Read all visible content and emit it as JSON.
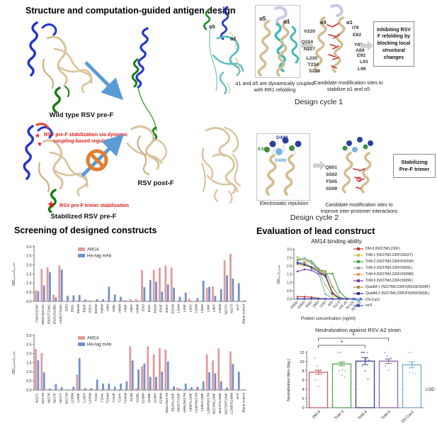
{
  "figure": {
    "panel1": {
      "title": "Structure and computation-guided antigen design",
      "wild_label": "Wild type RSV pre-F",
      "stabilized_label": "Stabilized RSV pre-F",
      "postf_label": "RSV post-F",
      "stab_note": "RSV pre-F stabilization via dynamic coupling-based regulations",
      "trimer_note": "RSV pre-F trimer stabilization",
      "star": "★"
    },
    "cycle1": {
      "label": "Design cycle 1",
      "alpha5": "α5",
      "alpha1": "α1",
      "zoom_caption": "α1 and α5 are dynamically coupled with RR1 refolding",
      "sites_left": [
        "V220",
        "Q224",
        "N227",
        "L230",
        "T234",
        "S238"
      ],
      "sites_right": [
        "I79",
        "E82",
        "Y86",
        "A89",
        "E92",
        "L93",
        "L96"
      ],
      "sites_caption": "Candidate modification sites to stabilize α1 and α5",
      "outcome": "Inhibiting RSV F refolding by blocking local structural changes"
    },
    "cycle2": {
      "label": "Design cycle 2",
      "d489": "D489",
      "e487": "E487",
      "d486": "D486",
      "zoom_caption": "Electrostatic repulsion",
      "sites": [
        "Q501",
        "S502",
        "F505",
        "S509"
      ],
      "sites_caption": "Candidate modification sites to improve inter-protomer interactions",
      "outcome": "Stabilizing Pre-F trimer"
    },
    "screening": {
      "title": "Screening of designed constructs"
    },
    "evaluation": {
      "title": "Evaluation of lead construct"
    }
  },
  "chart_data": [
    {
      "id": "screening-top",
      "type": "bar",
      "ylabel": "OD₄₅₀ₙₘ/₆₃₀ₙₘ",
      "ylim": [
        0,
        3
      ],
      "yticks": [
        0,
        0.5,
        1,
        1.5,
        2,
        2.5,
        3
      ],
      "legend": [
        "AM14",
        "His-tag mAb"
      ],
      "colors": [
        "#e29a9c",
        "#7191c9"
      ],
      "categories": [
        "I79C/V220C",
        "E82C/Q224C",
        "E92C/T234C",
        "E92C/S238C",
        "L93C/T234C",
        "E82I",
        "E82L",
        "E82M",
        "E82F",
        "E82Y",
        "E82W",
        "Y86W",
        "A89I",
        "A89L",
        "A89M",
        "A89F",
        "A89Y",
        "A89W",
        "E92I",
        "E92L",
        "E92M",
        "E92F",
        "E92Y",
        "E92W",
        "L93M",
        "L93F",
        "L93Y",
        "L93W",
        "L96M",
        "L96F",
        "L96Y",
        "L96W",
        "N227V",
        "N227I",
        "wt-F",
        "Blank control"
      ],
      "series": [
        {
          "name": "AM14",
          "values": [
            0.6,
            1.78,
            1.87,
            0.37,
            1.97,
            0.03,
            0.03,
            0.03,
            0.03,
            0.06,
            0.03,
            0.03,
            0.03,
            0.03,
            0.03,
            0.06,
            0.12,
            0.13,
            1.72,
            0.03,
            1.73,
            1.85,
            1.97,
            1.85,
            0.03,
            0.03,
            0.15,
            0.03,
            0.03,
            0.75,
            0.82,
            0.03,
            2.25,
            2.62,
            0.03,
            0.03
          ]
        },
        {
          "name": "His-tag mAb",
          "values": [
            0.57,
            0.87,
            1.6,
            0.22,
            1.75,
            0.3,
            0.33,
            0.35,
            0.1,
            0.03,
            0.12,
            0.12,
            0.8,
            0.37,
            0.25,
            0.03,
            0.03,
            0.03,
            0.78,
            1.18,
            1.08,
            0.53,
            0.93,
            0.75,
            0.25,
            0.48,
            0.03,
            0.18,
            1.13,
            0.8,
            0.3,
            0.67,
            1.43,
            1.25,
            1.0,
            0.05
          ]
        }
      ]
    },
    {
      "id": "screening-bottom",
      "type": "bar",
      "ylabel": "OD₄₅₀ₙₘ/₆₃₀ₙₘ",
      "ylim": [
        0,
        3
      ],
      "yticks": [
        0,
        0.5,
        1,
        1.5,
        2,
        2.5,
        3
      ],
      "legend": [
        "AM14",
        "His-tag mAb"
      ],
      "colors": [
        "#e29a9c",
        "#7191c9"
      ],
      "categories": [
        "N227L",
        "N227M",
        "N227P",
        "N227F",
        "N227Y",
        "N227W",
        "L230M",
        "L230F",
        "L230Y",
        "L230W",
        "T234I",
        "T234L",
        "T234M",
        "T234F",
        "T234Y",
        "T234W",
        "S238I",
        "S238L",
        "S238M",
        "S238F",
        "S238Y",
        "S238W",
        "E82L/N227M",
        "E82F/L230F",
        "E82F/T234F",
        "A89L/N227M",
        "A89F/L230F",
        "L93F/N227M",
        "L93F/L230F",
        "L96M/N227M",
        "N227M/L230F",
        "N227F/L230F",
        "N227M/T234F",
        "L230F/S238M",
        "wt-F",
        "Blank control"
      ],
      "series": [
        {
          "name": "AM14",
          "values": [
            2.25,
            2.03,
            0.03,
            0.03,
            0.03,
            0.03,
            0.03,
            0.85,
            0.03,
            0.03,
            0.03,
            0.03,
            0.03,
            0.03,
            0.03,
            0.03,
            2.4,
            0.1,
            1.3,
            2.4,
            1.95,
            2.3,
            2.22,
            0.03,
            0.13,
            0.03,
            0.05,
            0.03,
            0.03,
            1.95,
            1.62,
            2.28,
            0.03,
            2.12,
            0.03,
            0.03
          ]
        },
        {
          "name": "His-tag mAb",
          "values": [
            1.63,
            0.97,
            0.08,
            0.33,
            0.15,
            0.03,
            0.18,
            1.75,
            0.1,
            0.1,
            0.57,
            0.35,
            0.35,
            0.18,
            0.35,
            0.48,
            1.62,
            1.12,
            1.45,
            0.72,
            0.72,
            1.0,
            1.57,
            0.2,
            0.07,
            0.35,
            0.15,
            0.18,
            0.47,
            0.97,
            0.92,
            0.48,
            0.13,
            1.43,
            1.0,
            0.03
          ]
        }
      ]
    },
    {
      "id": "binding",
      "type": "line",
      "title": "AM14 binding ability",
      "xlabel": "Protein concentration (ng/ml)",
      "ylabel": "OD₄₅₀/₆₃₀ₙₘ",
      "ylim": [
        0,
        3
      ],
      "yticks": [
        0,
        0.5,
        1,
        1.5,
        2,
        2.5,
        3
      ],
      "x": [
        "20000",
        "10000",
        "5000",
        "2500",
        "1250",
        "625",
        "312.5",
        "156.25",
        "78.125",
        "39.0625"
      ],
      "series": [
        {
          "name": "DM-9 (N227M/L230F)",
          "color": "#cc3333",
          "values": [
            0.15,
            0.15,
            0.12,
            0.05,
            0.03,
            0.02,
            0.02,
            0.02,
            0.02,
            0.02
          ]
        },
        {
          "name": "TriM-1 (N227M/L230F/S502Y)",
          "color": "#c9c04d",
          "values": [
            2.55,
            2.3,
            2.2,
            1.75,
            0.85,
            0.2,
            0.03,
            0.02,
            0.02,
            0.02
          ]
        },
        {
          "name": "TriM-2 (N227M/L230F/F505W)",
          "color": "#44a244",
          "values": [
            2.4,
            2.45,
            2.3,
            1.85,
            1.55,
            1.55,
            0.45,
            0.05,
            0.02,
            0.02
          ]
        },
        {
          "name": "TriM-3 (N227M/L230F/S509L)",
          "color": "#9a9a9a",
          "values": [
            2.2,
            2.2,
            1.95,
            1.8,
            1.35,
            0.4,
            0.05,
            0.02,
            0.02,
            0.02
          ]
        },
        {
          "name": "TriM-4 (N227M/L230F/S509M)",
          "color": "#eb9a5f",
          "values": [
            2.35,
            2.45,
            2.15,
            1.8,
            1.45,
            0.4,
            0.05,
            0.02,
            0.02,
            0.02
          ]
        },
        {
          "name": "TriM-5 (N227M/L230F/S509F)",
          "color": "#7a3f9c",
          "values": [
            1.68,
            1.8,
            1.75,
            1.52,
            1.45,
            0.35,
            0.05,
            0.02,
            0.02,
            0.02
          ]
        },
        {
          "name": "QuadM-1 (N227M/L230F/Q501M/S509F)",
          "color": "#a3913f",
          "values": [
            2.1,
            2.05,
            1.95,
            1.78,
            1.7,
            0.75,
            0.1,
            0.02,
            0.02,
            0.02
          ]
        },
        {
          "name": "QuadM-2 (N227M/L230F/F505W/S509L)",
          "color": "#2b3580",
          "values": [
            2.2,
            2.1,
            1.9,
            1.65,
            1.4,
            0.35,
            0.05,
            0.02,
            0.02,
            0.02
          ]
        },
        {
          "name": "DS-Cav1",
          "color": "#6fb3d9",
          "values": [
            2.3,
            2.5,
            2.25,
            1.6,
            0.3,
            0.03,
            0.02,
            0.02,
            0.02,
            0.02
          ]
        },
        {
          "name": "wt-F",
          "color": "#3d52c4",
          "values": [
            0.03,
            0.03,
            0.03,
            0.03,
            0.02,
            0.02,
            0.02,
            0.02,
            0.02,
            0.02
          ]
        }
      ]
    },
    {
      "id": "neutralization",
      "type": "bar-scatter",
      "title": "Neutralization against RSV A2 strain",
      "ylabel": "Neutralization titers (log₂)",
      "ylim": [
        0,
        12
      ],
      "yticks": [
        0,
        2,
        4,
        6,
        8,
        10,
        12
      ],
      "categories": [
        "DM-9",
        "TriM-3",
        "TriM-4",
        "TriM-5",
        "DS-Cav1"
      ],
      "values": [
        7.7,
        9.5,
        10.1,
        10.1,
        9.3
      ],
      "errors": [
        0.45,
        0.4,
        0.75,
        0.5,
        0.65
      ],
      "colors": [
        "#c4606a",
        "#55a055",
        "#3d3d8f",
        "#9066a8",
        "#74aac4"
      ],
      "points": [
        [
          10.8,
          9.0,
          8.0,
          8.0,
          7.8,
          7.5,
          6.0,
          4.6
        ],
        [
          12,
          12,
          10,
          9.5,
          8.2,
          8.0,
          8.0,
          7.0,
          6.6
        ],
        [
          12,
          12,
          12,
          12,
          10.5,
          10.3,
          9.0,
          8.0,
          6.2
        ],
        [
          12,
          11.2,
          10.8,
          10.5,
          10.2,
          10.0,
          9.0,
          8.2
        ],
        [
          12,
          12,
          9.2,
          7.6,
          7.5,
          7.4
        ]
      ],
      "lod": 4,
      "lod_label": "LOD",
      "significance": [
        {
          "a": 0,
          "b": 2,
          "label": "*"
        },
        {
          "a": 0,
          "b": 3,
          "label": "*"
        }
      ]
    }
  ]
}
